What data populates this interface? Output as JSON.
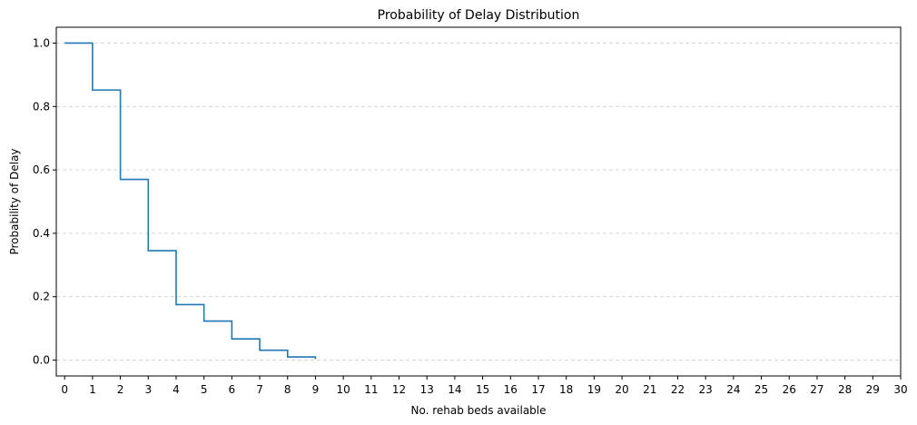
{
  "chart_data": {
    "type": "line",
    "step": "post",
    "title": "Probability of Delay Distribution",
    "xlabel": "No. rehab beds available",
    "ylabel": "Probability of Delay",
    "xlim": [
      -0.3,
      30
    ],
    "ylim": [
      -0.05,
      1.05
    ],
    "xticks": [
      0,
      1,
      2,
      3,
      4,
      5,
      6,
      7,
      8,
      9,
      10,
      11,
      12,
      13,
      14,
      15,
      16,
      17,
      18,
      19,
      20,
      21,
      22,
      23,
      24,
      25,
      26,
      27,
      28,
      29,
      30
    ],
    "xtick_labels": [
      "0",
      "1",
      "2",
      "3",
      "4",
      "5",
      "6",
      "7",
      "8",
      "9",
      "10",
      "11",
      "12",
      "13",
      "14",
      "15",
      "16",
      "17",
      "18",
      "19",
      "20",
      "21",
      "22",
      "23",
      "24",
      "25",
      "26",
      "27",
      "28",
      "29",
      "30"
    ],
    "yticks": [
      0.0,
      0.2,
      0.4,
      0.6,
      0.8,
      1.0
    ],
    "ytick_labels": [
      "0.0",
      "0.2",
      "0.4",
      "0.6",
      "0.8",
      "1.0"
    ],
    "grid": "y-dashed",
    "series": [
      {
        "color": "#1f77b4",
        "x": [
          0,
          1,
          2,
          3,
          4,
          5,
          6,
          7,
          8,
          9
        ],
        "y": [
          1.0,
          0.852,
          0.57,
          0.345,
          0.175,
          0.123,
          0.067,
          0.031,
          0.01,
          0.003
        ]
      }
    ]
  }
}
